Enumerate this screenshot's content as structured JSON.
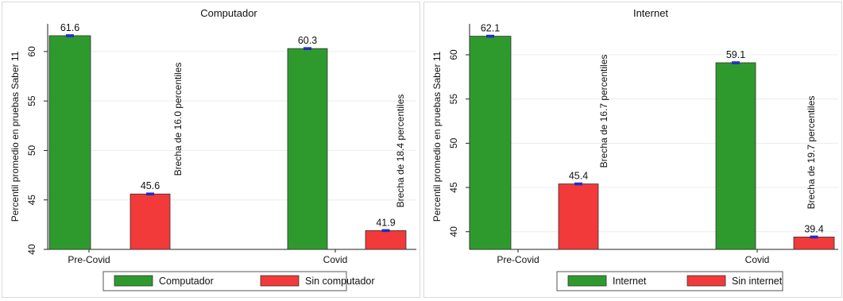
{
  "colors": {
    "green": "#2e9a2e",
    "red": "#f23a3a",
    "errorbar": "#1f2bd6"
  },
  "chart_data": [
    {
      "type": "bar",
      "title": "Computador",
      "ylabel": "Percentil promedio en pruebas Saber 11",
      "xlabel": "",
      "categories": [
        "Pre-Covid",
        "Covid"
      ],
      "ylim": [
        40,
        62.8
      ],
      "yticks": [
        40,
        45,
        50,
        55,
        60
      ],
      "grid": true,
      "legend_position": "bottom",
      "series": [
        {
          "name": "Computador",
          "values": [
            61.6,
            60.3
          ],
          "labels": [
            "61.6",
            "60.3"
          ],
          "color": "#2e9a2e"
        },
        {
          "name": "Sin computador",
          "values": [
            45.6,
            41.9
          ],
          "labels": [
            "45.6",
            "41.9"
          ],
          "color": "#f23a3a"
        }
      ],
      "annotations": [
        "Brecha de 16.0 percentiles",
        "Brecha de 18.4 percentiles"
      ]
    },
    {
      "type": "bar",
      "title": "Internet",
      "ylabel": "Percentil promedio en pruebas Saber 11",
      "xlabel": "",
      "categories": [
        "Pre-Covid",
        "Covid"
      ],
      "ylim": [
        38,
        63.5
      ],
      "yticks": [
        40,
        45,
        50,
        55,
        60
      ],
      "grid": true,
      "legend_position": "bottom",
      "series": [
        {
          "name": "Internet",
          "values": [
            62.1,
            59.1
          ],
          "labels": [
            "62.1",
            "59.1"
          ],
          "color": "#2e9a2e"
        },
        {
          "name": "Sin internet",
          "values": [
            45.4,
            39.4
          ],
          "labels": [
            "45.4",
            "39.4"
          ],
          "color": "#f23a3a"
        }
      ],
      "annotations": [
        "Brecha de 16.7 percentiles",
        "Brecha de 19.7 percentiles"
      ]
    }
  ]
}
